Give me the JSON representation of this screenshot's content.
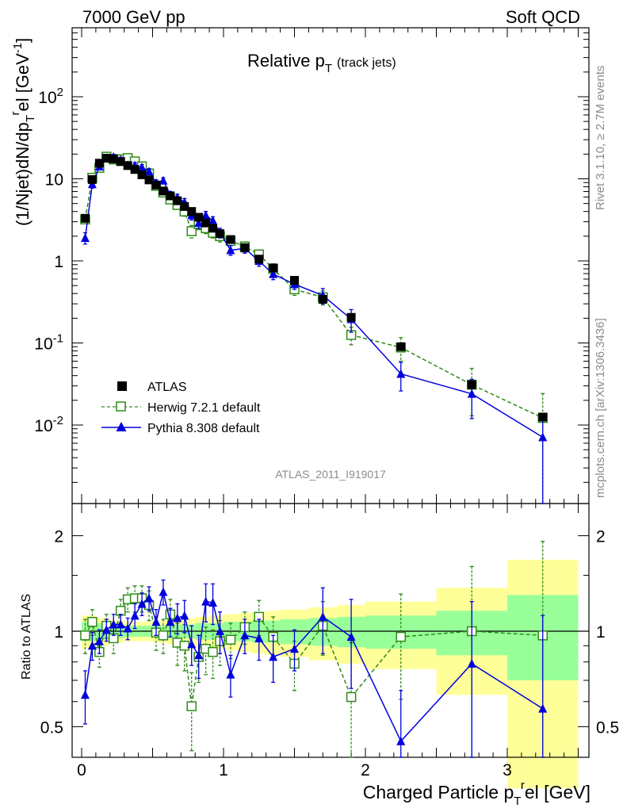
{
  "header": {
    "left": "7000 GeV pp",
    "right": "Soft QCD"
  },
  "side_labels": {
    "rivet": "Rivet 3.1.10, ≥ 2.7M events",
    "mcplots": "mcplots.cern.ch [arXiv:1306.3436]"
  },
  "watermark": "ATLAS_2011_I919017",
  "colors": {
    "data": "#000000",
    "herwig": "#2e8b18",
    "pythia": "#0000dd",
    "band_inner": "#99ff99",
    "band_outer": "#ffff99"
  },
  "chart_data": [
    {
      "type": "scatter",
      "title": "Relative p_T (track jets)",
      "title_main": "Relative p",
      "title_sub": "T",
      "title_suffix": "(track jets)",
      "ylabel_parts": [
        "(1/Njet)dN/dp",
        "T",
        "r",
        "el [GeV",
        "-1",
        "]"
      ],
      "xlabel_parts": [
        "Charged Particle p",
        "T",
        "r",
        "el [GeV]"
      ],
      "yscale": "log",
      "ylim": [
        0.0015,
        900
      ],
      "xlim": [
        -0.07,
        3.55
      ],
      "ytick_labels": [
        "10^{-2}",
        "10^{-1}",
        "1",
        "10",
        "10^{2}"
      ],
      "legend": {
        "position": "bottom-left",
        "entries": [
          "ATLAS",
          "Herwig 7.2.1 default",
          "Pythia 8.308 default"
        ]
      },
      "x": [
        0.025,
        0.075,
        0.125,
        0.175,
        0.225,
        0.275,
        0.325,
        0.375,
        0.425,
        0.475,
        0.525,
        0.575,
        0.625,
        0.675,
        0.725,
        0.775,
        0.825,
        0.875,
        0.925,
        0.975,
        1.05,
        1.15,
        1.25,
        1.35,
        1.5,
        1.7,
        1.9,
        2.25,
        2.75,
        3.25
      ],
      "series": [
        {
          "name": "ATLAS",
          "values": [
            3.3,
            9.8,
            15.5,
            17.8,
            17.5,
            16.2,
            14.5,
            13.0,
            11.2,
            9.7,
            8.4,
            7.1,
            6.2,
            5.4,
            4.6,
            4.0,
            3.4,
            2.9,
            2.5,
            2.15,
            1.82,
            1.45,
            1.05,
            0.82,
            0.58,
            0.34,
            0.205,
            0.09,
            0.031,
            0.0125
          ]
        },
        {
          "name": "Herwig 7.2.1 default",
          "values": [
            3.2,
            10.3,
            13.6,
            18.6,
            17.2,
            17.3,
            17.9,
            16.3,
            14.2,
            11.6,
            8.2,
            6.8,
            5.6,
            4.8,
            4.0,
            2.3,
            2.8,
            2.5,
            2.2,
            2.0,
            1.75,
            1.5,
            1.2,
            0.8,
            0.45,
            0.36,
            0.125,
            0.088,
            0.031,
            0.0122
          ],
          "errors": [
            0.35,
            1.0,
            1.2,
            1.5,
            1.4,
            1.4,
            1.4,
            1.3,
            1.2,
            1.0,
            0.8,
            0.7,
            0.6,
            0.55,
            0.5,
            0.4,
            0.4,
            0.35,
            0.3,
            0.3,
            0.2,
            0.18,
            0.15,
            0.12,
            0.07,
            0.07,
            0.03,
            0.028,
            0.018,
            0.012
          ]
        },
        {
          "name": "Pythia 8.308 default",
          "values": [
            1.9,
            8.6,
            14.1,
            17.9,
            18.5,
            17.1,
            14.7,
            14.6,
            13.8,
            12.3,
            8.9,
            9.5,
            6.4,
            5.9,
            5.2,
            3.6,
            2.9,
            3.6,
            3.1,
            2.2,
            1.35,
            1.42,
            1.0,
            0.69,
            0.52,
            0.38,
            0.195,
            0.042,
            0.024,
            0.0071
          ],
          "errors": [
            0.3,
            0.9,
            1.1,
            1.3,
            1.3,
            1.2,
            1.1,
            1.1,
            1.1,
            1.0,
            0.8,
            0.8,
            0.6,
            0.6,
            0.55,
            0.45,
            0.4,
            0.4,
            0.35,
            0.3,
            0.18,
            0.18,
            0.14,
            0.1,
            0.07,
            0.08,
            0.06,
            0.016,
            0.012,
            0.0068
          ]
        }
      ]
    },
    {
      "type": "line",
      "title": "Ratio to ATLAS",
      "ylabel": "Ratio to ATLAS",
      "yscale": "log",
      "ylim": [
        0.42,
        2.45
      ],
      "xlim": [
        -0.07,
        3.55
      ],
      "ytick_labels": [
        "0.5",
        "1",
        "2"
      ],
      "xtick_labels": [
        "0",
        "1",
        "2",
        "3"
      ],
      "x": [
        0.025,
        0.075,
        0.125,
        0.175,
        0.225,
        0.275,
        0.325,
        0.375,
        0.425,
        0.475,
        0.525,
        0.575,
        0.625,
        0.675,
        0.725,
        0.775,
        0.825,
        0.875,
        0.925,
        0.975,
        1.05,
        1.15,
        1.25,
        1.35,
        1.5,
        1.7,
        1.9,
        2.25,
        2.75,
        3.25
      ],
      "series": [
        {
          "name": "Herwig 7.2.1 default",
          "values": [
            0.97,
            1.07,
            0.86,
            1.04,
            0.95,
            1.16,
            1.26,
            1.27,
            1.27,
            1.21,
            0.99,
            0.97,
            1.13,
            0.92,
            0.9,
            0.58,
            0.83,
            0.88,
            0.86,
            0.93,
            0.94,
            1.03,
            1.11,
            0.96,
            0.79,
            1.04,
            0.62,
            0.96,
            1.0,
            0.97
          ],
          "errors": [
            0.12,
            0.1,
            0.09,
            0.09,
            0.1,
            0.1,
            0.11,
            0.12,
            0.12,
            0.13,
            0.12,
            0.12,
            0.13,
            0.14,
            0.15,
            0.16,
            0.14,
            0.15,
            0.15,
            0.15,
            0.12,
            0.12,
            0.14,
            0.15,
            0.14,
            0.2,
            0.3,
            0.35,
            0.6,
            0.95
          ]
        },
        {
          "name": "Pythia 8.308 default",
          "values": [
            0.63,
            0.9,
            0.93,
            1.01,
            1.05,
            1.05,
            1.02,
            1.12,
            1.22,
            1.27,
            1.07,
            1.33,
            1.07,
            1.1,
            1.12,
            0.91,
            0.84,
            1.24,
            1.23,
            1.0,
            0.73,
            0.97,
            0.95,
            0.83,
            0.88,
            1.11,
            0.96,
            0.45,
            0.79,
            0.57
          ],
          "errors": [
            0.12,
            0.09,
            0.08,
            0.08,
            0.08,
            0.08,
            0.08,
            0.1,
            0.1,
            0.11,
            0.1,
            0.12,
            0.11,
            0.12,
            0.13,
            0.13,
            0.13,
            0.17,
            0.18,
            0.15,
            0.11,
            0.12,
            0.14,
            0.14,
            0.13,
            0.26,
            0.3,
            0.2,
            0.45,
            0.55
          ]
        }
      ],
      "bands": {
        "edges": [
          0.0,
          0.1,
          0.2,
          0.3,
          0.4,
          0.5,
          0.6,
          0.7,
          0.8,
          0.9,
          1.0,
          1.1,
          1.2,
          1.3,
          1.4,
          1.6,
          1.8,
          2.0,
          2.5,
          3.0,
          3.5
        ],
        "inner_lo": [
          0.93,
          0.94,
          0.95,
          0.96,
          0.96,
          0.96,
          0.95,
          0.95,
          0.94,
          0.94,
          0.93,
          0.93,
          0.92,
          0.92,
          0.91,
          0.9,
          0.89,
          0.88,
          0.84,
          0.7
        ],
        "inner_hi": [
          1.07,
          1.06,
          1.05,
          1.04,
          1.04,
          1.04,
          1.05,
          1.05,
          1.06,
          1.06,
          1.07,
          1.07,
          1.08,
          1.08,
          1.09,
          1.1,
          1.11,
          1.12,
          1.16,
          1.3
        ],
        "outer_lo": [
          0.88,
          0.9,
          0.92,
          0.93,
          0.93,
          0.92,
          0.91,
          0.9,
          0.89,
          0.88,
          0.87,
          0.86,
          0.85,
          0.84,
          0.83,
          0.81,
          0.79,
          0.76,
          0.63,
          0.32
        ],
        "outer_hi": [
          1.12,
          1.1,
          1.08,
          1.07,
          1.07,
          1.08,
          1.09,
          1.1,
          1.11,
          1.12,
          1.13,
          1.14,
          1.15,
          1.16,
          1.17,
          1.19,
          1.21,
          1.24,
          1.37,
          1.68
        ]
      }
    }
  ]
}
